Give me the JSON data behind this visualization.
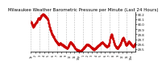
{
  "title": "Milwaukee Weather Barometric Pressure per Minute (Last 24 Hours)",
  "background_color": "#ffffff",
  "plot_bg_color": "#ffffff",
  "line_color": "#cc0000",
  "grid_color": "#aaaaaa",
  "title_fontsize": 4.0,
  "tick_fontsize": 2.8,
  "ylim": [
    29.45,
    30.25
  ],
  "y_ticks": [
    29.5,
    29.6,
    29.7,
    29.8,
    29.9,
    30.0,
    30.1,
    30.2
  ],
  "num_vgrid_lines": 9,
  "x_tick_labels": [
    "1p",
    "2",
    "3",
    "4",
    "5",
    "6",
    "7",
    "8",
    "9",
    "10",
    "11",
    "12p",
    "1",
    "2",
    "3",
    "4",
    "5",
    "6",
    "7",
    "8",
    "9",
    "10",
    "11",
    "12a",
    "1"
  ],
  "waypoints": [
    [
      0,
      30.05
    ],
    [
      30,
      29.95
    ],
    [
      60,
      30.02
    ],
    [
      80,
      30.05
    ],
    [
      100,
      30.12
    ],
    [
      120,
      30.1
    ],
    [
      140,
      30.18
    ],
    [
      170,
      30.2
    ],
    [
      200,
      30.16
    ],
    [
      230,
      30.1
    ],
    [
      260,
      29.92
    ],
    [
      290,
      29.8
    ],
    [
      320,
      29.72
    ],
    [
      350,
      29.65
    ],
    [
      380,
      29.6
    ],
    [
      410,
      29.62
    ],
    [
      440,
      29.58
    ],
    [
      470,
      29.55
    ],
    [
      500,
      29.52
    ],
    [
      520,
      29.58
    ],
    [
      540,
      29.65
    ],
    [
      560,
      29.62
    ],
    [
      580,
      29.58
    ],
    [
      600,
      29.54
    ],
    [
      620,
      29.5
    ],
    [
      650,
      29.48
    ],
    [
      680,
      29.46
    ],
    [
      710,
      29.5
    ],
    [
      740,
      29.55
    ],
    [
      770,
      29.6
    ],
    [
      800,
      29.58
    ],
    [
      830,
      29.54
    ],
    [
      860,
      29.5
    ],
    [
      890,
      29.52
    ],
    [
      920,
      29.56
    ],
    [
      950,
      29.6
    ],
    [
      980,
      29.64
    ],
    [
      1010,
      29.6
    ],
    [
      1040,
      29.55
    ],
    [
      1070,
      29.58
    ],
    [
      1090,
      29.72
    ],
    [
      1110,
      29.8
    ],
    [
      1130,
      29.7
    ],
    [
      1150,
      29.6
    ],
    [
      1170,
      29.55
    ],
    [
      1190,
      29.52
    ],
    [
      1210,
      29.56
    ],
    [
      1230,
      29.6
    ],
    [
      1250,
      29.68
    ],
    [
      1270,
      29.74
    ],
    [
      1290,
      29.66
    ],
    [
      1310,
      29.58
    ],
    [
      1330,
      29.62
    ],
    [
      1350,
      29.66
    ],
    [
      1370,
      29.62
    ],
    [
      1390,
      29.58
    ],
    [
      1410,
      29.55
    ],
    [
      1430,
      29.6
    ],
    [
      1439,
      29.62
    ]
  ],
  "noise_std": 0.007
}
